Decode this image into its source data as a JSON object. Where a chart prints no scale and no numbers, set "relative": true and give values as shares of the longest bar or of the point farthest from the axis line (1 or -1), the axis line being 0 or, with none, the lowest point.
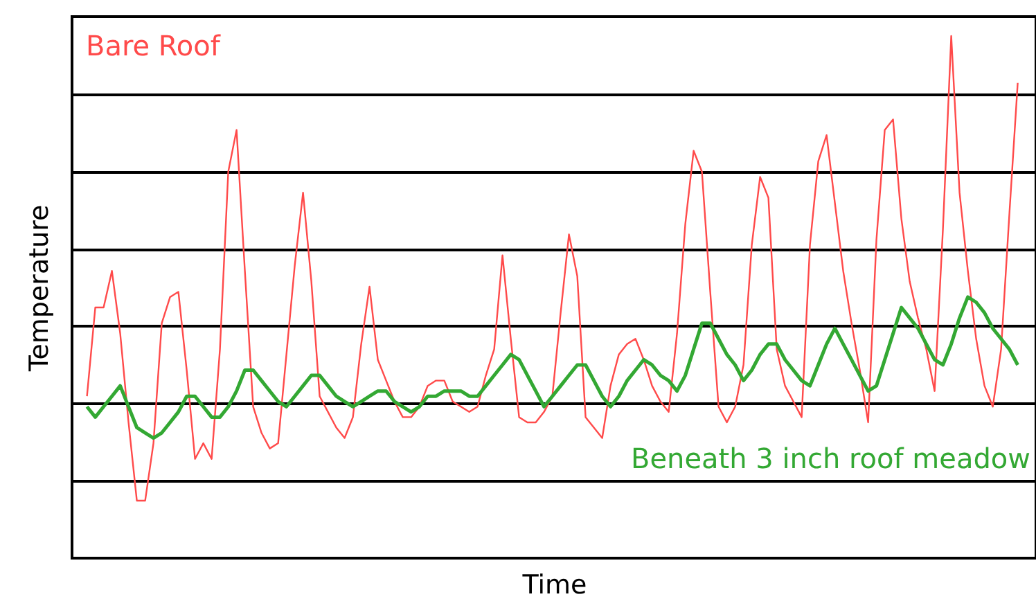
{
  "chart_data": {
    "type": "line",
    "relative": true,
    "xlabel": "Time",
    "ylabel": "Temperature",
    "grid": "y",
    "marker": "none",
    "line_style": "solid",
    "categories": [
      null,
      null,
      null,
      null,
      null,
      null,
      null,
      null,
      null,
      null,
      null,
      null,
      null,
      null,
      null,
      null,
      null,
      null,
      null,
      null,
      null,
      null,
      null,
      null,
      null,
      null,
      null,
      null,
      null,
      null,
      null,
      null,
      null,
      null,
      null,
      null,
      null,
      null,
      null,
      null,
      null,
      null,
      null,
      null,
      null,
      null,
      null,
      null,
      null,
      null,
      null,
      null,
      null,
      null,
      null,
      null,
      null,
      null,
      null,
      null,
      null,
      null,
      null,
      null,
      null,
      null,
      null,
      null,
      null,
      null,
      null,
      null,
      null,
      null,
      null,
      null,
      null,
      null,
      null,
      null,
      null,
      null,
      null,
      null,
      null,
      null,
      null,
      null,
      null,
      null,
      null,
      null,
      null,
      null,
      null,
      null,
      null,
      null,
      null,
      null,
      null,
      null,
      null,
      null,
      null,
      null,
      null,
      null,
      null,
      null,
      null,
      null,
      null
    ],
    "series": [
      {
        "name": "Bare Roof",
        "color": "#ff4a4a",
        "values": [
          0.31,
          0.48,
          0.48,
          0.55,
          0.43,
          0.26,
          0.11,
          0.11,
          0.22,
          0.45,
          0.5,
          0.51,
          0.36,
          0.19,
          0.22,
          0.19,
          0.4,
          0.74,
          0.82,
          0.55,
          0.29,
          0.24,
          0.21,
          0.22,
          0.39,
          0.56,
          0.7,
          0.53,
          0.31,
          0.28,
          0.25,
          0.23,
          0.27,
          0.41,
          0.52,
          0.38,
          0.34,
          0.3,
          0.27,
          0.27,
          0.29,
          0.33,
          0.34,
          0.34,
          0.3,
          0.29,
          0.28,
          0.29,
          0.35,
          0.4,
          0.58,
          0.42,
          0.27,
          0.26,
          0.26,
          0.28,
          0.31,
          0.47,
          0.62,
          0.54,
          0.27,
          0.25,
          0.23,
          0.33,
          0.39,
          0.41,
          0.42,
          0.38,
          0.33,
          0.3,
          0.28,
          0.43,
          0.64,
          0.78,
          0.74,
          0.51,
          0.29,
          0.26,
          0.29,
          0.37,
          0.6,
          0.73,
          0.69,
          0.4,
          0.33,
          0.3,
          0.27,
          0.6,
          0.76,
          0.81,
          0.68,
          0.55,
          0.45,
          0.36,
          0.26,
          0.61,
          0.82,
          0.84,
          0.65,
          0.53,
          0.46,
          0.4,
          0.32,
          0.63,
          1.0,
          0.7,
          0.55,
          0.42,
          0.33,
          0.29,
          0.4,
          0.66,
          0.91
        ]
      },
      {
        "name": "Beneath 3 inch roof meadow",
        "color": "#33a833",
        "values": [
          0.29,
          0.27,
          0.29,
          0.31,
          0.33,
          0.29,
          0.25,
          0.24,
          0.23,
          0.24,
          0.26,
          0.28,
          0.31,
          0.31,
          0.29,
          0.27,
          0.27,
          0.29,
          0.32,
          0.36,
          0.36,
          0.34,
          0.32,
          0.3,
          0.29,
          0.31,
          0.33,
          0.35,
          0.35,
          0.33,
          0.31,
          0.3,
          0.29,
          0.3,
          0.31,
          0.32,
          0.32,
          0.3,
          0.29,
          0.28,
          0.29,
          0.31,
          0.31,
          0.32,
          0.32,
          0.32,
          0.31,
          0.31,
          0.33,
          0.35,
          0.37,
          0.39,
          0.38,
          0.35,
          0.32,
          0.29,
          0.31,
          0.33,
          0.35,
          0.37,
          0.37,
          0.34,
          0.31,
          0.29,
          0.31,
          0.34,
          0.36,
          0.38,
          0.37,
          0.35,
          0.34,
          0.32,
          0.35,
          0.4,
          0.45,
          0.45,
          0.42,
          0.39,
          0.37,
          0.34,
          0.36,
          0.39,
          0.41,
          0.41,
          0.38,
          0.36,
          0.34,
          0.33,
          0.37,
          0.41,
          0.44,
          0.41,
          0.38,
          0.35,
          0.32,
          0.33,
          0.38,
          0.43,
          0.48,
          0.46,
          0.44,
          0.41,
          0.38,
          0.37,
          0.41,
          0.46,
          0.5,
          0.49,
          0.47,
          0.44,
          0.42,
          0.4,
          0.37
        ]
      }
    ]
  }
}
